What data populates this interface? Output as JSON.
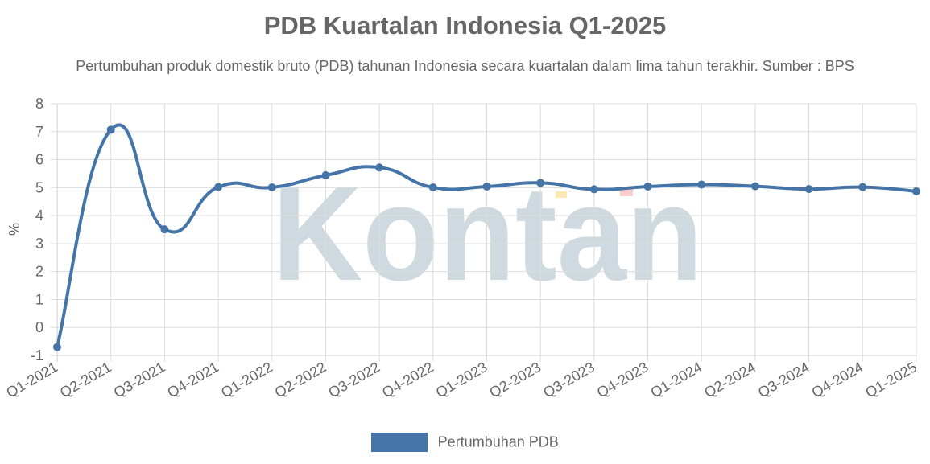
{
  "chart_data": {
    "type": "line",
    "title": "PDB Kuartalan Indonesia Q1-2025",
    "subtitle": "Pertumbuhan produk domestik bruto (PDB) tahunan Indonesia secara kuartalan dalam lima tahun terakhir. Sumber : BPS",
    "xlabel": "",
    "ylabel": "%",
    "ylim": [
      -1,
      8
    ],
    "yticks": [
      "8",
      "7",
      "6",
      "5",
      "4",
      "3",
      "2",
      "1",
      "0",
      "-1"
    ],
    "categories": [
      "Q1-2021",
      "Q2-2021",
      "Q3-2021",
      "Q4-2021",
      "Q1-2022",
      "Q2-2022",
      "Q3-2022",
      "Q4-2022",
      "Q1-2023",
      "Q2-2023",
      "Q3-2023",
      "Q4-2023",
      "Q1-2024",
      "Q2-2024",
      "Q3-2024",
      "Q4-2024",
      "Q1-2025"
    ],
    "series": [
      {
        "name": "Pertumbuhan PDB",
        "color": "#4575a8",
        "values": [
          -0.7,
          7.07,
          3.51,
          5.02,
          5.01,
          5.44,
          5.72,
          5.01,
          5.04,
          5.17,
          4.94,
          5.04,
          5.11,
          5.05,
          4.95,
          5.02,
          4.87
        ]
      }
    ],
    "grid": true,
    "legend_position": "bottom",
    "watermark": "Kontan"
  }
}
